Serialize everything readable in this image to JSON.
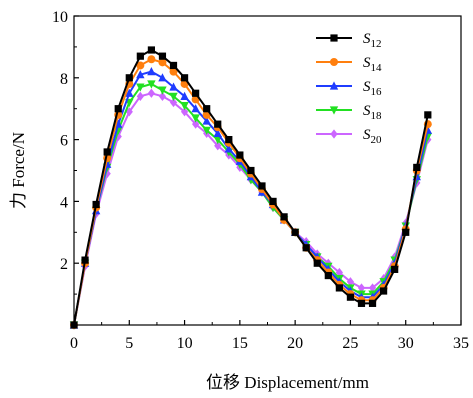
{
  "chart_data": {
    "type": "line",
    "xlabel": "位移 Displacement/mm",
    "ylabel": "力 Force/N",
    "xlim": [
      0,
      35
    ],
    "ylim": [
      0,
      10
    ],
    "xticks": [
      0,
      5,
      10,
      15,
      20,
      25,
      30,
      35
    ],
    "yticks": [
      2,
      4,
      6,
      8,
      10
    ],
    "grid": false,
    "legend": "top-right",
    "series": [
      {
        "name": "S12",
        "name_base": "S",
        "name_sub": "12",
        "color": "#000000",
        "marker": "square",
        "x": [
          0,
          1,
          2,
          3,
          4,
          5,
          6,
          7,
          8,
          9,
          10,
          11,
          12,
          13,
          14,
          15,
          16,
          17,
          18,
          19,
          20,
          21,
          22,
          23,
          24,
          25,
          26,
          27,
          28,
          29,
          30,
          31,
          32
        ],
        "y": [
          0,
          2.1,
          3.9,
          5.6,
          7.0,
          8.0,
          8.7,
          8.9,
          8.7,
          8.4,
          8.0,
          7.5,
          7.0,
          6.5,
          6.0,
          5.5,
          5.0,
          4.5,
          4.0,
          3.5,
          3.0,
          2.5,
          2.0,
          1.6,
          1.2,
          0.9,
          0.7,
          0.7,
          1.1,
          1.8,
          3.0,
          5.1,
          6.8
        ]
      },
      {
        "name": "S14",
        "name_base": "S",
        "name_sub": "14",
        "color": "#ff7f0e",
        "marker": "circle",
        "x": [
          0,
          1,
          2,
          3,
          4,
          5,
          6,
          7,
          8,
          9,
          10,
          11,
          12,
          13,
          14,
          15,
          16,
          17,
          18,
          19,
          20,
          21,
          22,
          23,
          24,
          25,
          26,
          27,
          28,
          29,
          30,
          31,
          32
        ],
        "y": [
          0,
          2.0,
          3.8,
          5.4,
          6.8,
          7.8,
          8.4,
          8.6,
          8.5,
          8.2,
          7.8,
          7.3,
          6.8,
          6.4,
          5.9,
          5.4,
          4.9,
          4.4,
          3.9,
          3.4,
          3.0,
          2.5,
          2.1,
          1.7,
          1.3,
          1.0,
          0.8,
          0.8,
          1.2,
          1.9,
          3.1,
          5.0,
          6.5
        ]
      },
      {
        "name": "S16",
        "name_base": "S",
        "name_sub": "16",
        "color": "#1f3cff",
        "marker": "triangle",
        "x": [
          0,
          1,
          2,
          3,
          4,
          5,
          6,
          7,
          8,
          9,
          10,
          11,
          12,
          13,
          14,
          15,
          16,
          17,
          18,
          19,
          20,
          21,
          22,
          23,
          24,
          25,
          26,
          27,
          28,
          29,
          30,
          31,
          32
        ],
        "y": [
          0,
          2.0,
          3.7,
          5.2,
          6.5,
          7.5,
          8.1,
          8.2,
          8.0,
          7.7,
          7.4,
          7.0,
          6.6,
          6.2,
          5.7,
          5.3,
          4.8,
          4.3,
          3.9,
          3.4,
          3.0,
          2.6,
          2.2,
          1.8,
          1.4,
          1.1,
          0.9,
          0.9,
          1.3,
          2.0,
          3.2,
          4.8,
          6.3
        ]
      },
      {
        "name": "S18",
        "name_base": "S",
        "name_sub": "18",
        "color": "#22e022",
        "marker": "triangle-down",
        "x": [
          0,
          1,
          2,
          3,
          4,
          5,
          6,
          7,
          8,
          9,
          10,
          11,
          12,
          13,
          14,
          15,
          16,
          17,
          18,
          19,
          20,
          21,
          22,
          23,
          24,
          25,
          26,
          27,
          28,
          29,
          30,
          31,
          32
        ],
        "y": [
          0,
          2.0,
          3.7,
          5.1,
          6.3,
          7.2,
          7.7,
          7.8,
          7.6,
          7.4,
          7.1,
          6.7,
          6.3,
          6.0,
          5.6,
          5.2,
          4.7,
          4.3,
          3.8,
          3.4,
          3.0,
          2.6,
          2.2,
          1.9,
          1.5,
          1.2,
          1.0,
          1.0,
          1.4,
          2.1,
          3.2,
          4.7,
          6.1
        ]
      },
      {
        "name": "S20",
        "name_base": "S",
        "name_sub": "20",
        "color": "#cc66ff",
        "marker": "diamond",
        "x": [
          0,
          1,
          2,
          3,
          4,
          5,
          6,
          7,
          8,
          9,
          10,
          11,
          12,
          13,
          14,
          15,
          16,
          17,
          18,
          19,
          20,
          21,
          22,
          23,
          24,
          25,
          26,
          27,
          28,
          29,
          30,
          31,
          32
        ],
        "y": [
          0,
          1.9,
          3.6,
          4.9,
          6.1,
          6.9,
          7.4,
          7.5,
          7.4,
          7.2,
          6.9,
          6.5,
          6.2,
          5.8,
          5.5,
          5.1,
          4.7,
          4.3,
          3.8,
          3.4,
          3.0,
          2.7,
          2.3,
          2.0,
          1.7,
          1.4,
          1.2,
          1.2,
          1.5,
          2.2,
          3.3,
          4.6,
          6.0
        ]
      }
    ]
  }
}
